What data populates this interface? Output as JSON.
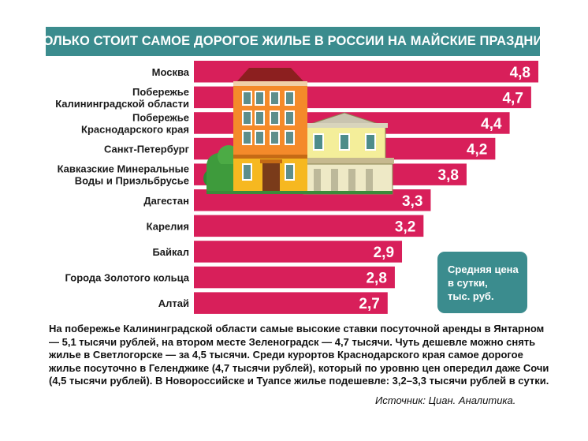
{
  "title": "СКОЛЬКО СТОИТ САМОЕ ДОРОГОЕ ЖИЛЬЕ В РОССИИ НА МАЙСКИЕ ПРАЗДНИКИ",
  "legend_text": "Средняя цена\nв сутки,\nтыс. руб.",
  "note": "На побережье Калининградской области самые высокие ставки посуточной аренды в Янтарном — 5,1 тысячи рублей, на втором месте Зеленоградск — 4,7 тысячи. Чуть дешевле можно снять жилье в Светлогорске — за 4,5 тысячи. Среди курортов Краснодарского края самое дорогое жилье посуточно в Геленджике (4,7 тысячи рублей), который по уровню цен опередил даже Сочи (4,5 тысячи рублей). В Новороссийске и Туапсе жилье подешевле: 3,2–3,3 тысячи рублей в сутки.",
  "source": "Источник: Циан. Аналитика.",
  "colors": {
    "bar": "#d81f5a",
    "accent": "#3b8c8e"
  },
  "chart_data": {
    "type": "bar",
    "orientation": "horizontal",
    "title": "СКОЛЬКО СТОИТ САМОЕ ДОРОГОЕ ЖИЛЬЕ В РОССИИ НА МАЙСКИЕ ПРАЗДНИКИ",
    "categories": [
      [
        "Москва"
      ],
      [
        "Побережье",
        "Калининградской области"
      ],
      [
        "Побережье",
        "Краснодарского края"
      ],
      [
        "Санкт-Петербург"
      ],
      [
        "Кавказские Минеральные",
        "Воды и Приэльбрусье"
      ],
      [
        "Дагестан"
      ],
      [
        "Карелия"
      ],
      [
        "Байкал"
      ],
      [
        "Города Золотого кольца"
      ],
      [
        "Алтай"
      ]
    ],
    "values": [
      4.8,
      4.7,
      4.4,
      4.2,
      3.8,
      3.3,
      3.2,
      2.9,
      2.8,
      2.7
    ],
    "value_labels": [
      "4,8",
      "4,7",
      "4,4",
      "4,2",
      "3,8",
      "3,3",
      "3,2",
      "2,9",
      "2,8",
      "2,7"
    ],
    "unit": "тыс. руб.",
    "xlim": [
      0,
      4.8
    ],
    "grid": false,
    "legend": "bottom-right"
  }
}
